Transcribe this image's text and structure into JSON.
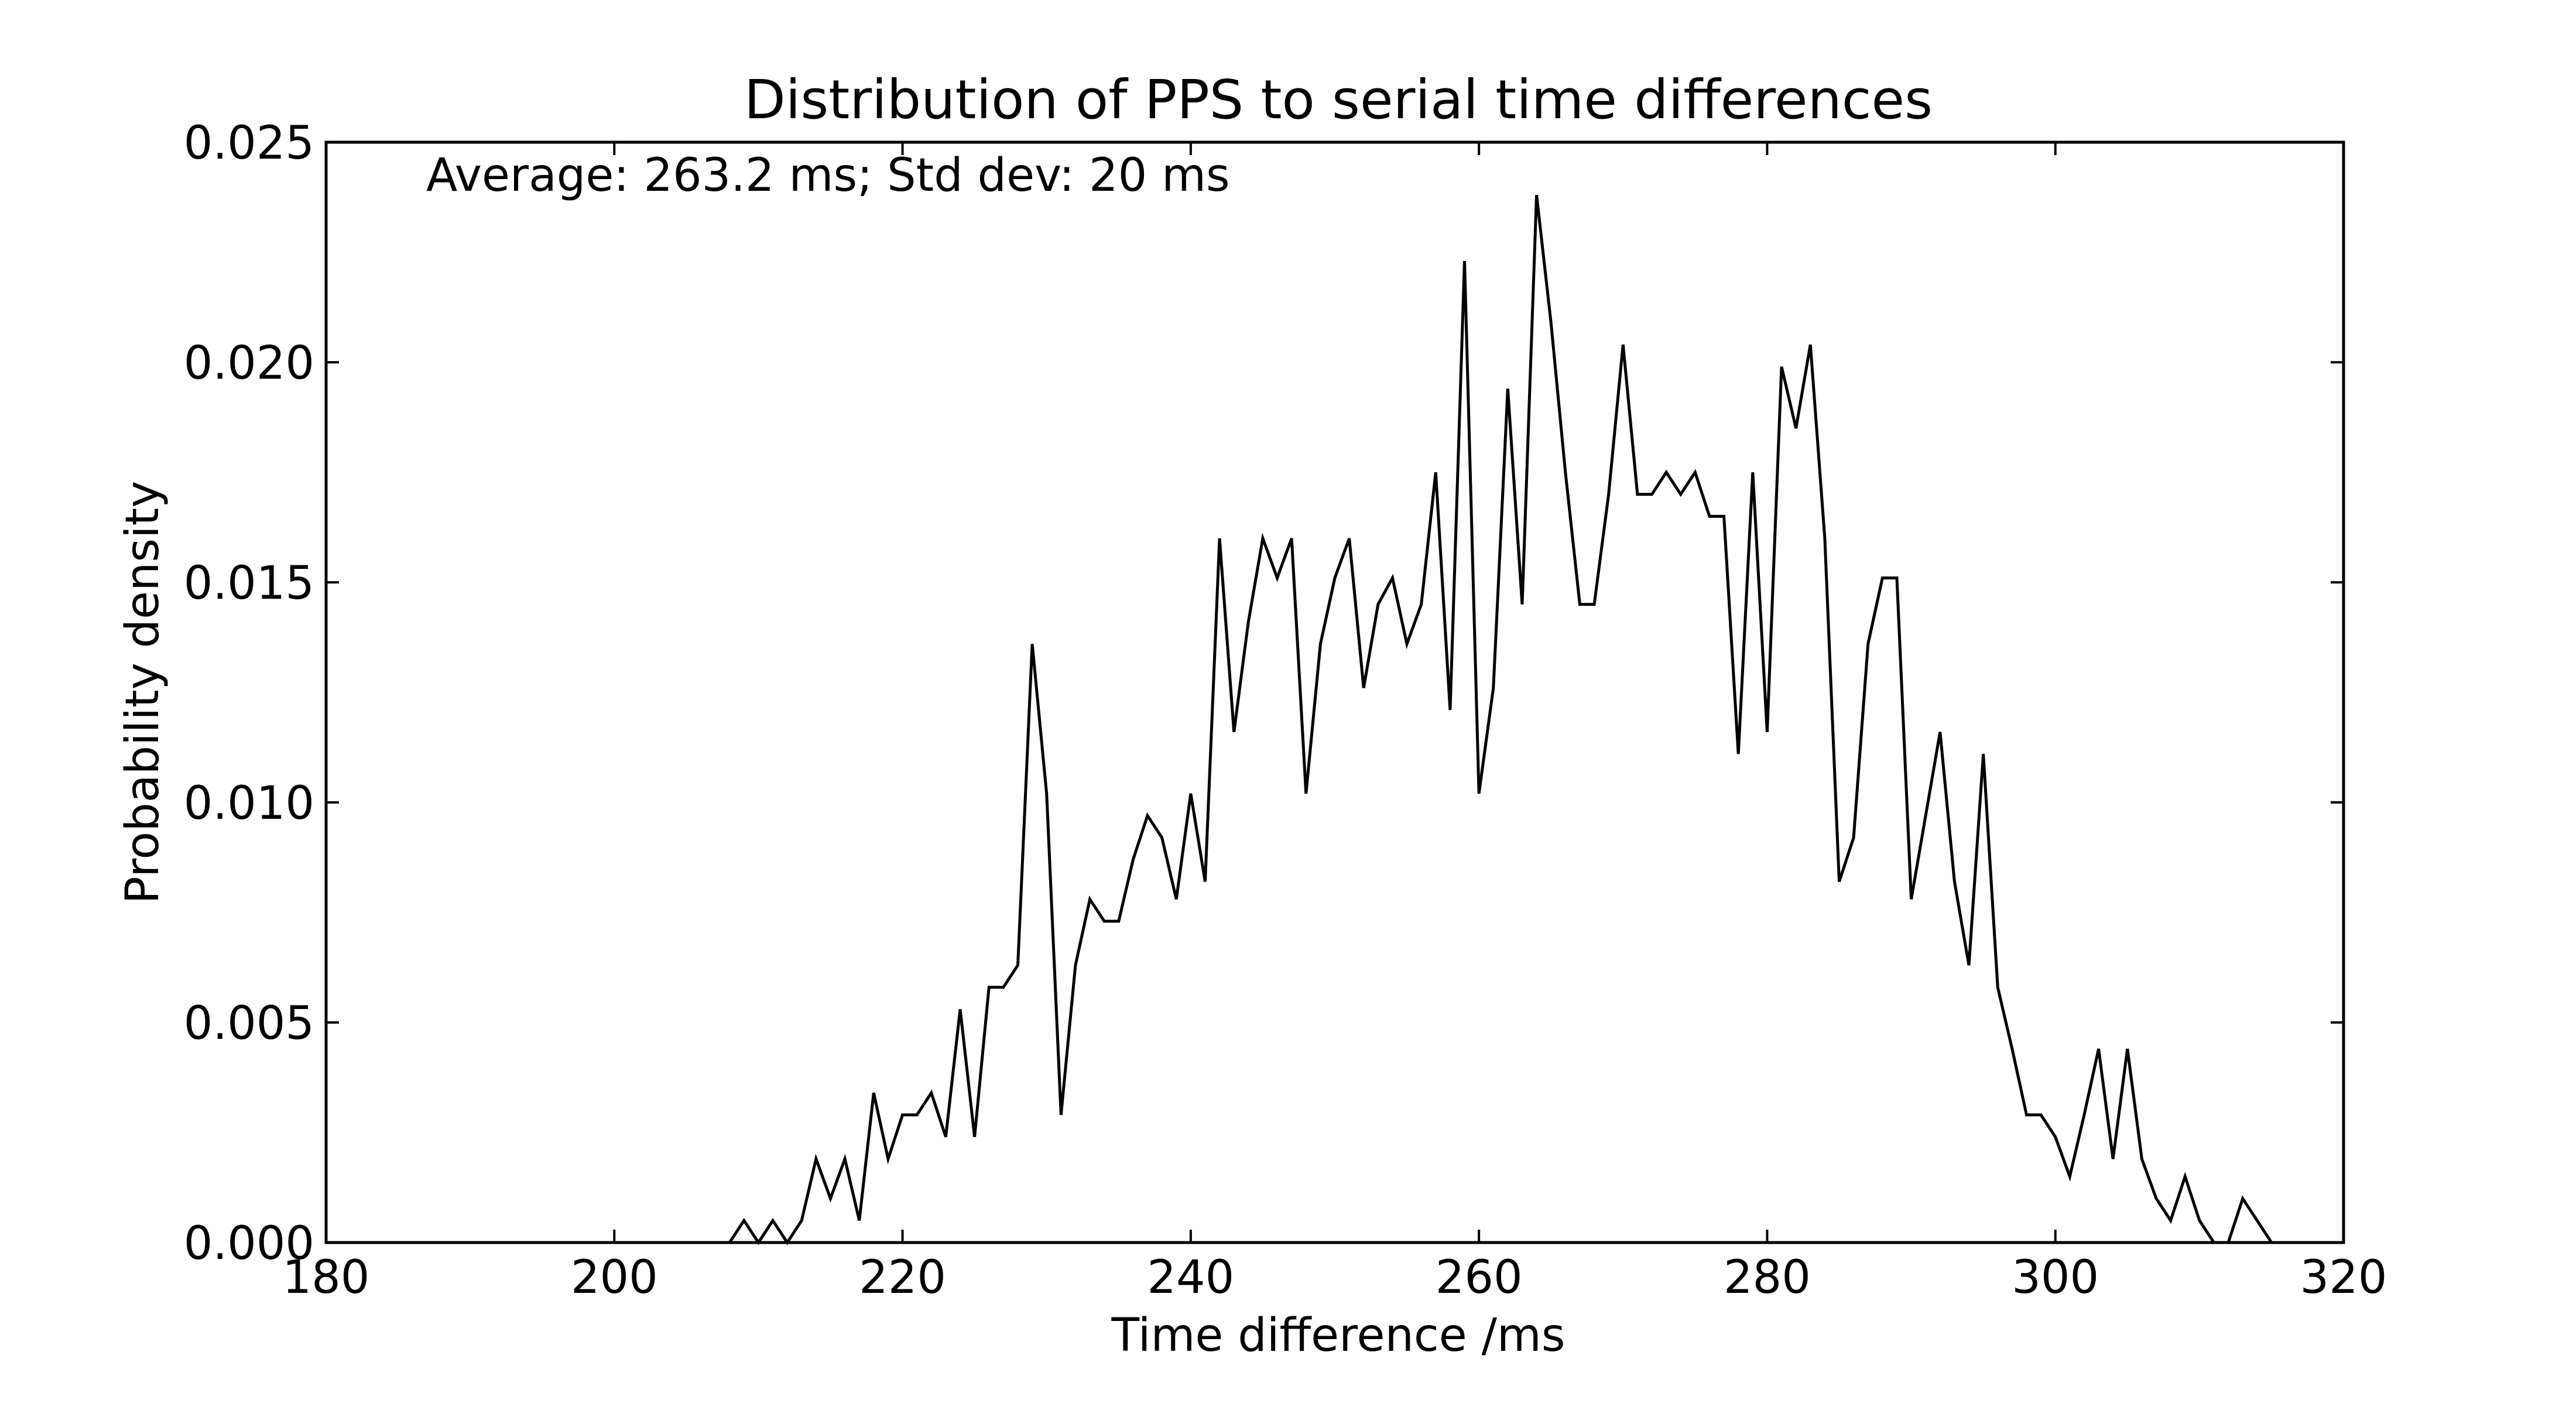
{
  "chart_data": {
    "type": "line",
    "title": "Distribution of PPS to serial time differences",
    "xlabel": "Time difference /ms",
    "ylabel": "Probability density",
    "annotation": "Average: 263.2 ms;  Std dev: 20 ms",
    "xlim": [
      180,
      320
    ],
    "ylim": [
      0.0,
      0.025
    ],
    "xticks": [
      180,
      200,
      220,
      240,
      260,
      280,
      300,
      320
    ],
    "xtick_labels": [
      "180",
      "200",
      "220",
      "240",
      "260",
      "280",
      "300",
      "320"
    ],
    "yticks": [
      0.0,
      0.005,
      0.01,
      0.015,
      0.02,
      0.025
    ],
    "ytick_labels": [
      "0.000",
      "0.005",
      "0.010",
      "0.015",
      "0.020",
      "0.025"
    ],
    "grid": false,
    "line_color": "#000000",
    "series": [
      {
        "x": [
          180,
          181,
          182,
          183,
          184,
          185,
          186,
          187,
          188,
          189,
          190,
          191,
          192,
          193,
          194,
          195,
          196,
          197,
          198,
          199,
          200,
          201,
          202,
          203,
          204,
          205,
          206,
          207,
          208,
          209,
          210,
          211,
          212,
          213,
          214,
          215,
          216,
          217,
          218,
          219,
          220,
          221,
          222,
          223,
          224,
          225,
          226,
          227,
          228,
          229,
          230,
          231,
          232,
          233,
          234,
          235,
          236,
          237,
          238,
          239,
          240,
          241,
          242,
          243,
          244,
          245,
          246,
          247,
          248,
          249,
          250,
          251,
          252,
          253,
          254,
          255,
          256,
          257,
          258,
          259,
          260,
          261,
          262,
          263,
          264,
          265,
          266,
          267,
          268,
          269,
          270,
          271,
          272,
          273,
          274,
          275,
          276,
          277,
          278,
          279,
          280,
          281,
          282,
          283,
          284,
          285,
          286,
          287,
          288,
          289,
          290,
          291,
          292,
          293,
          294,
          295,
          296,
          297,
          298,
          299,
          300,
          301,
          302,
          303,
          304,
          305,
          306,
          307,
          308,
          309,
          310,
          311,
          312,
          313,
          314,
          315
        ],
        "y": [
          0,
          0,
          0,
          0,
          0,
          0,
          0,
          0,
          0,
          0,
          0,
          0,
          0,
          0,
          0,
          0,
          0,
          0,
          0,
          0,
          0,
          0,
          0,
          0,
          0,
          0,
          0,
          0,
          0,
          0.0005,
          0,
          0.0005,
          0,
          0.0005,
          0.0019,
          0.001,
          0.0019,
          0.0005,
          0.0034,
          0.0019,
          0.0029,
          0.0029,
          0.0034,
          0.0024,
          0.0053,
          0.0024,
          0.0058,
          0.0058,
          0.0063,
          0.0136,
          0.0102,
          0.0029,
          0.0063,
          0.0078,
          0.0073,
          0.0073,
          0.0087,
          0.0097,
          0.0092,
          0.0078,
          0.0102,
          0.0082,
          0.016,
          0.0116,
          0.0141,
          0.016,
          0.0151,
          0.016,
          0.0102,
          0.0136,
          0.0151,
          0.016,
          0.0126,
          0.0145,
          0.0151,
          0.0136,
          0.0145,
          0.0175,
          0.0121,
          0.0223,
          0.0102,
          0.0126,
          0.0194,
          0.0145,
          0.0238,
          0.0209,
          0.0175,
          0.0145,
          0.0145,
          0.017,
          0.0204,
          0.017,
          0.017,
          0.0175,
          0.017,
          0.0175,
          0.0165,
          0.0165,
          0.0111,
          0.0175,
          0.0116,
          0.0199,
          0.0185,
          0.0204,
          0.016,
          0.0082,
          0.0092,
          0.0136,
          0.0151,
          0.0151,
          0.0078,
          0.0097,
          0.0116,
          0.0082,
          0.0063,
          0.0111,
          0.0058,
          0.0044,
          0.0029,
          0.0029,
          0.0024,
          0.0015,
          0.0029,
          0.0044,
          0.0019,
          0.0044,
          0.0019,
          0.001,
          0.0005,
          0.0015,
          0.0005,
          0,
          0,
          0.001,
          0.0005,
          0
        ]
      }
    ]
  }
}
